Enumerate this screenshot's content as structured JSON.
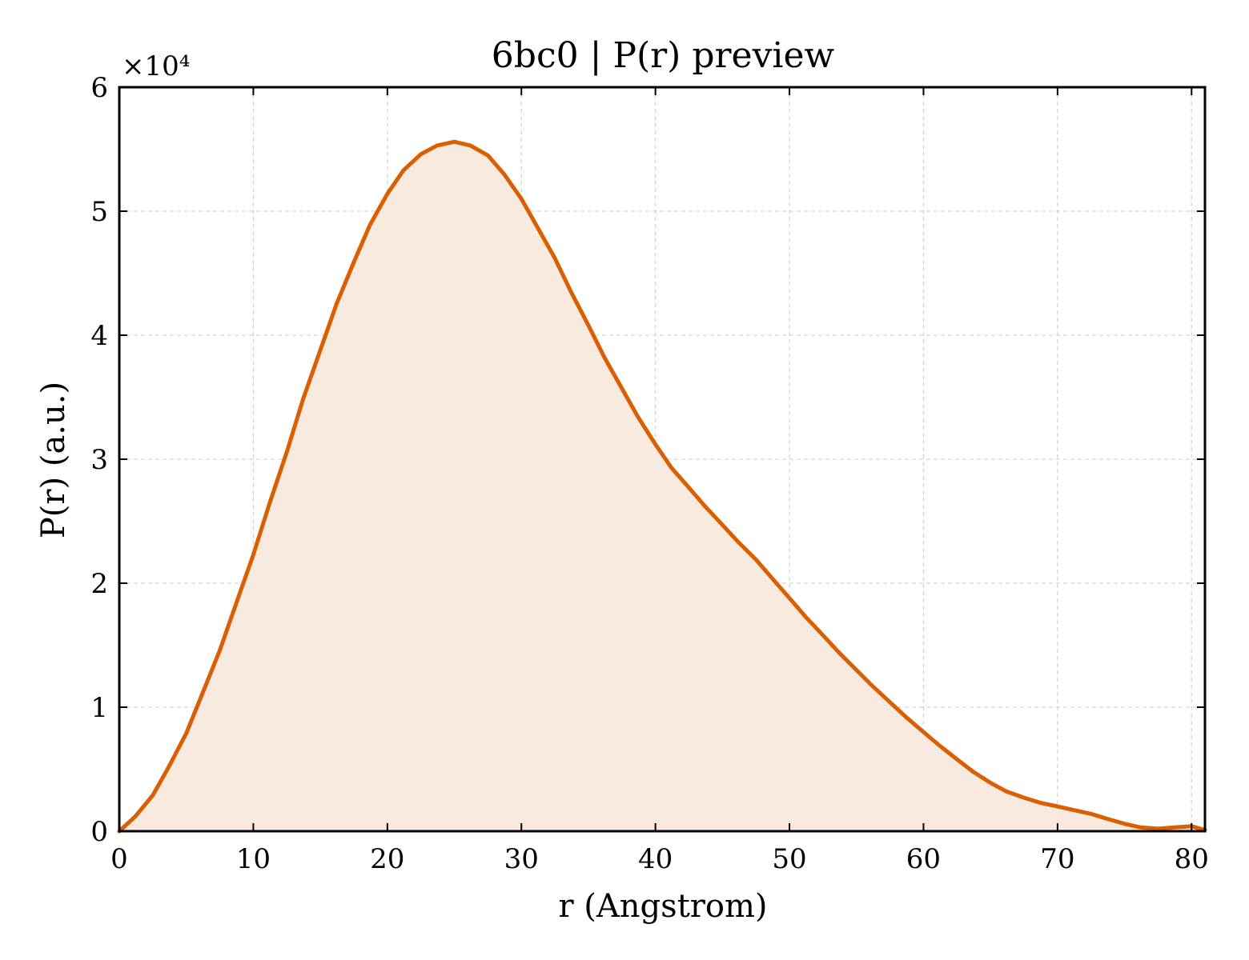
{
  "chart_data": {
    "type": "area",
    "title": "6bc0 | P(r) preview",
    "xlabel": "r (Angstrom)",
    "ylabel": "P(r) (a.u.)",
    "y_offset_text": "×10⁴",
    "y_scale_factor": 10000,
    "xlim": [
      0,
      81
    ],
    "ylim": [
      0,
      60000
    ],
    "x_ticks": [
      0,
      10,
      20,
      30,
      40,
      50,
      60,
      70,
      80
    ],
    "x_tick_labels": [
      "0",
      "10",
      "20",
      "30",
      "40",
      "50",
      "60",
      "70",
      "80"
    ],
    "y_ticks": [
      0,
      10000,
      20000,
      30000,
      40000,
      50000,
      60000
    ],
    "y_tick_labels": [
      "0",
      "1",
      "2",
      "3",
      "4",
      "5",
      "6"
    ],
    "grid": true,
    "line_color": "#d95f02",
    "fill_color": "#f9eadf",
    "series": [
      {
        "x": [
          0,
          1.2,
          2.5,
          3.7,
          5.0,
          6.2,
          7.5,
          8.7,
          10.0,
          11.2,
          12.5,
          13.7,
          15.0,
          16.2,
          17.5,
          18.7,
          20.0,
          21.2,
          22.5,
          23.7,
          25.0,
          26.2,
          27.5,
          28.7,
          30.0,
          31.2,
          32.5,
          33.7,
          35.0,
          36.2,
          37.5,
          38.7,
          40.0,
          41.2,
          42.5,
          43.7,
          45.0,
          46.2,
          47.5,
          48.7,
          50.0,
          51.2,
          52.5,
          53.7,
          55.0,
          56.2,
          57.5,
          58.7,
          60.0,
          61.2,
          62.5,
          63.7,
          65.0,
          66.2,
          67.5,
          68.7,
          70.0,
          71.2,
          72.5,
          73.7,
          75.0,
          76.2,
          77.5,
          78.7,
          80.0,
          81.0
        ],
        "y": [
          0,
          1200,
          2900,
          5200,
          7900,
          11100,
          14600,
          18300,
          22300,
          26400,
          30600,
          34800,
          38800,
          42500,
          45900,
          48900,
          51400,
          53300,
          54600,
          55300,
          55600,
          55300,
          54500,
          53000,
          51000,
          48700,
          46200,
          43500,
          40800,
          38200,
          35700,
          33400,
          31200,
          29300,
          27700,
          26200,
          24700,
          23300,
          21900,
          20400,
          18800,
          17300,
          15800,
          14400,
          13000,
          11700,
          10400,
          9200,
          8000,
          6900,
          5800,
          4800,
          3900,
          3200,
          2700,
          2300,
          2000,
          1700,
          1400,
          1000,
          600,
          300,
          200,
          300,
          400,
          100
        ]
      }
    ]
  }
}
